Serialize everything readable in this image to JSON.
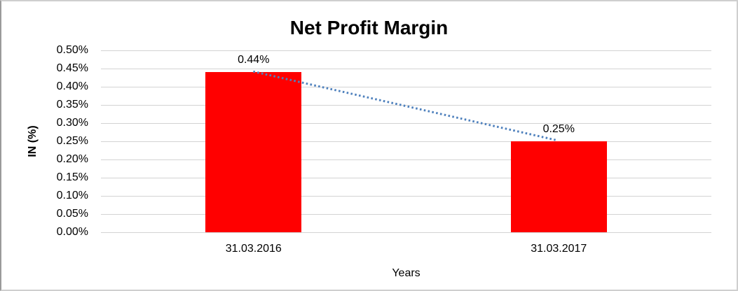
{
  "chart_data": {
    "type": "bar",
    "title": "Net Profit Margin",
    "xlabel": "Years",
    "ylabel": "IN (%)",
    "categories": [
      "31.03.2016",
      "31.03.2017"
    ],
    "values": [
      0.44,
      0.25
    ],
    "data_labels": [
      "0.44%",
      "0.25%"
    ],
    "ylim": [
      0,
      0.5
    ],
    "ytick_values": [
      0.5,
      0.45,
      0.4,
      0.35,
      0.3,
      0.25,
      0.2,
      0.15,
      0.1,
      0.05,
      0.0
    ],
    "ytick_labels": [
      "0.50%",
      "0.45%",
      "0.40%",
      "0.35%",
      "0.30%",
      "0.25%",
      "0.20%",
      "0.15%",
      "0.10%",
      "0.05%",
      "0.00%"
    ],
    "grid": true,
    "legend": "none",
    "bar_color": "#ff0000",
    "gridline_color": "#d3d3d3",
    "trendline": {
      "type": "linear",
      "style": "dotted",
      "color": "#4f81bd",
      "connects": "tops of bars from 0.44% to 0.25%"
    }
  }
}
